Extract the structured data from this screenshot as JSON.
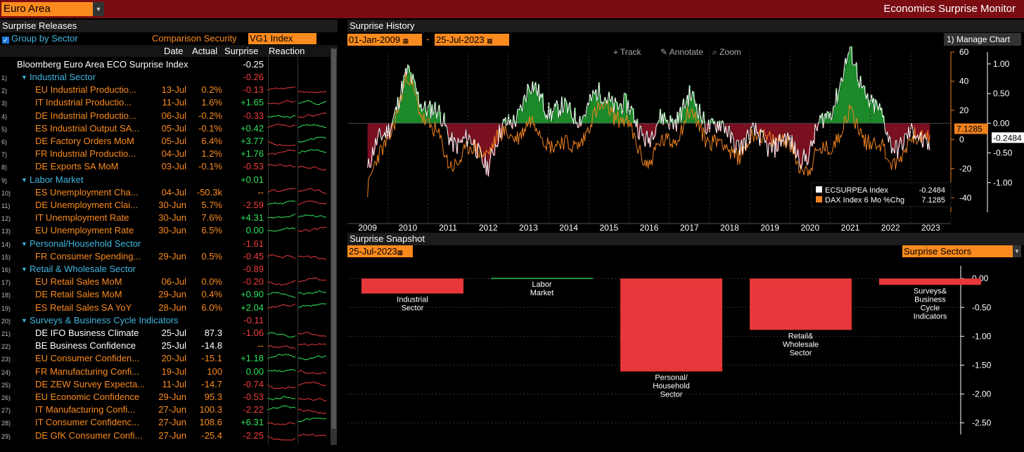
{
  "header": {
    "region": "Euro Area",
    "title": "Economics Surprise Monitor"
  },
  "releases": {
    "title": "Surprise Releases",
    "group_by_sector": "Group by Sector",
    "comparison_label": "Comparison Security",
    "comparison_value": "VG1 Index",
    "col_date": "Date",
    "col_actual": "Actual",
    "col_surprise": "Surprise",
    "col_reaction": "Reaction",
    "index_row": {
      "name": "Bloomberg Euro Area ECO Surprise Index",
      "surprise": "-0.25"
    },
    "rows": [
      {
        "n": "1)",
        "name": "Industrial Sector",
        "type": "sector",
        "surprise": "-0.26"
      },
      {
        "n": "2)",
        "name": "EU Industrial Productio...",
        "date": "13-Jul",
        "actual": "0.2%",
        "surprise": "-0.13"
      },
      {
        "n": "3)",
        "name": "IT Industrial Productio...",
        "date": "11-Jul",
        "actual": "1.6%",
        "surprise": "+1.65"
      },
      {
        "n": "4)",
        "name": "DE Industrial Productio...",
        "date": "06-Jul",
        "actual": "-0.2%",
        "surprise": "-0.33"
      },
      {
        "n": "5)",
        "name": "ES Industrial Output SA...",
        "date": "05-Jul",
        "actual": "-0.1%",
        "surprise": "+0.42"
      },
      {
        "n": "6)",
        "name": "DE Factory Orders MoM",
        "date": "05-Jul",
        "actual": "6.4%",
        "surprise": "+3.77"
      },
      {
        "n": "7)",
        "name": "FR Industrial Productio...",
        "date": "04-Jul",
        "actual": "1.2%",
        "surprise": "+1.76"
      },
      {
        "n": "8)",
        "name": "DE Exports SA MoM",
        "date": "03-Jul",
        "actual": "-0.1%",
        "surprise": "-0.53"
      },
      {
        "n": "9)",
        "name": "Labor Market",
        "type": "sector",
        "surprise": "+0.01"
      },
      {
        "n": "10)",
        "name": "ES Unemployment Cha...",
        "date": "04-Jul",
        "actual": "-50.3k",
        "surprise": "--"
      },
      {
        "n": "11)",
        "name": "DE Unemployment Clai...",
        "date": "30-Jun",
        "actual": "5.7%",
        "surprise": "-2.59"
      },
      {
        "n": "12)",
        "name": "IT Unemployment Rate",
        "date": "30-Jun",
        "actual": "7.6%",
        "surprise": "+4.31"
      },
      {
        "n": "13)",
        "name": "EU Unemployment Rate",
        "date": "30-Jun",
        "actual": "6.5%",
        "surprise": "0.00"
      },
      {
        "n": "14)",
        "name": "Personal/Household Sector",
        "type": "sector",
        "surprise": "-1.61"
      },
      {
        "n": "15)",
        "name": "FR Consumer Spending...",
        "date": "29-Jun",
        "actual": "0.5%",
        "surprise": "-0.45"
      },
      {
        "n": "16)",
        "name": "Retail & Wholesale Sector",
        "type": "sector",
        "surprise": "-0.89"
      },
      {
        "n": "17)",
        "name": "EU Retail Sales MoM",
        "date": "06-Jul",
        "actual": "0.0%",
        "surprise": "-0.20"
      },
      {
        "n": "18)",
        "name": "DE Retail Sales MoM",
        "date": "29-Jun",
        "actual": "0.4%",
        "surprise": "+0.90"
      },
      {
        "n": "19)",
        "name": "ES Retail Sales SA YoY",
        "date": "28-Jun",
        "actual": "6.0%",
        "surprise": "+2.04"
      },
      {
        "n": "20)",
        "name": "Surveys & Business Cycle Indicators",
        "type": "sector",
        "surprise": "-0.11"
      },
      {
        "n": "21)",
        "name": "DE IFO Business Climate",
        "date": "25-Jul",
        "actual": "87.3",
        "surprise": "-1.06",
        "white": true
      },
      {
        "n": "22)",
        "name": "BE Business Confidence",
        "date": "25-Jul",
        "actual": "-14.8",
        "surprise": "--",
        "white": true
      },
      {
        "n": "23)",
        "name": "EU Consumer Confiden...",
        "date": "20-Jul",
        "actual": "-15.1",
        "surprise": "+1.18"
      },
      {
        "n": "24)",
        "name": "FR Manufacturing Confi...",
        "date": "19-Jul",
        "actual": "100",
        "surprise": "0.00"
      },
      {
        "n": "25)",
        "name": "DE ZEW Survey Expecta...",
        "date": "11-Jul",
        "actual": "-14.7",
        "surprise": "-0.74"
      },
      {
        "n": "26)",
        "name": "EU Economic Confidence",
        "date": "29-Jun",
        "actual": "95.3",
        "surprise": "-0.53"
      },
      {
        "n": "27)",
        "name": "IT Manufacturing Confi...",
        "date": "27-Jun",
        "actual": "100.3",
        "surprise": "-2.22"
      },
      {
        "n": "28)",
        "name": "IT Consumer Confidenc...",
        "date": "27-Jun",
        "actual": "108.6",
        "surprise": "+6.31"
      },
      {
        "n": "29)",
        "name": "DE GfK Consumer Confi...",
        "date": "27-Jun",
        "actual": "-25.4",
        "surprise": "-2.25"
      }
    ]
  },
  "history": {
    "title": "Surprise History",
    "start_date": "01-Jan-2009",
    "end_date": "25-Jul-2023",
    "dash": "-",
    "manage_chart": "1) Manage Chart",
    "tools": [
      "Track",
      "Annotate",
      "Zoom"
    ],
    "left_ticks": [
      "60",
      "40",
      "20",
      "0",
      "-20",
      "-40"
    ],
    "right_ticks": [
      "1.00",
      "0.50",
      "0.00",
      "-0.50",
      "-1.00"
    ],
    "last_dax": "7.1285",
    "last_eco": "-0.2484",
    "years": [
      "2009",
      "2010",
      "2011",
      "2012",
      "2013",
      "2014",
      "2015",
      "2016",
      "2017",
      "2018",
      "2019",
      "2020",
      "2021",
      "2022",
      "2023"
    ],
    "legend": [
      {
        "name": "ECSURPEA Index",
        "value": "-0.2484",
        "color": "#ffffff"
      },
      {
        "name": "DAX Index 6 Mo %Chg",
        "value": "7.1285",
        "color": "#f0821e"
      }
    ]
  },
  "snapshot": {
    "title": "Surprise Snapshot",
    "date": "25-Jul-2023",
    "selector": "Surprise Sectors",
    "ticks": [
      "0.00",
      "-0.50",
      "-1.00",
      "-1.50",
      "-2.00",
      "-2.50"
    ]
  },
  "colors": {
    "accent": "#fb8b1e",
    "negative": "#e8373a",
    "positive": "#23c24a",
    "header": "#7a0d12"
  },
  "chart_data": [
    {
      "type": "line",
      "x": [
        "2009",
        "2010",
        "2011",
        "2012",
        "2013",
        "2014",
        "2015",
        "2016",
        "2017",
        "2018",
        "2019",
        "2020",
        "2021",
        "2022",
        "2023"
      ],
      "series": [
        {
          "name": "ECSURPEA Index",
          "values": [
            -0.8,
            0.75,
            -0.15,
            -0.6,
            0.55,
            0.1,
            0.5,
            -0.2,
            0.35,
            -0.25,
            -0.3,
            -0.5,
            1.1,
            -0.3,
            -0.25
          ]
        },
        {
          "name": "DAX Index 6 Mo %Chg",
          "values": [
            -35,
            40,
            -15,
            -5,
            10,
            -8,
            25,
            -15,
            15,
            -10,
            5,
            -20,
            15,
            -15,
            7.1285
          ]
        }
      ],
      "ylim_left": [
        -50,
        60
      ],
      "ylim_right": [
        -1.5,
        1.2
      ]
    },
    {
      "type": "bar",
      "categories": [
        "Industrial Sector",
        "Labor Market",
        "Personal/ Household Sector",
        "Retail& Wholesale Sector",
        "Surveys& Business Cycle Indicators"
      ],
      "values": [
        -0.26,
        0.01,
        -1.61,
        -0.89,
        -0.11
      ],
      "ylim": [
        -2.7,
        0.1
      ]
    }
  ]
}
